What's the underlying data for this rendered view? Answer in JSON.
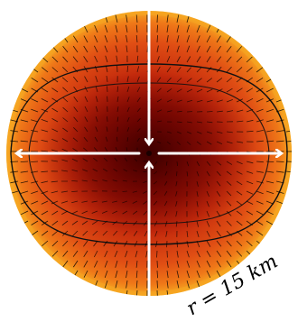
{
  "annotation": {
    "label": "r = 15 km"
  },
  "colors": {
    "background": "#ffffff",
    "core": "#5a0000",
    "inner": "#b01a08",
    "mid": "#d83a12",
    "outer": "#ee6a14",
    "rim": "#f6a822",
    "contour": "#111111",
    "arrows": "#ffffff",
    "vectors": "#000000"
  }
}
